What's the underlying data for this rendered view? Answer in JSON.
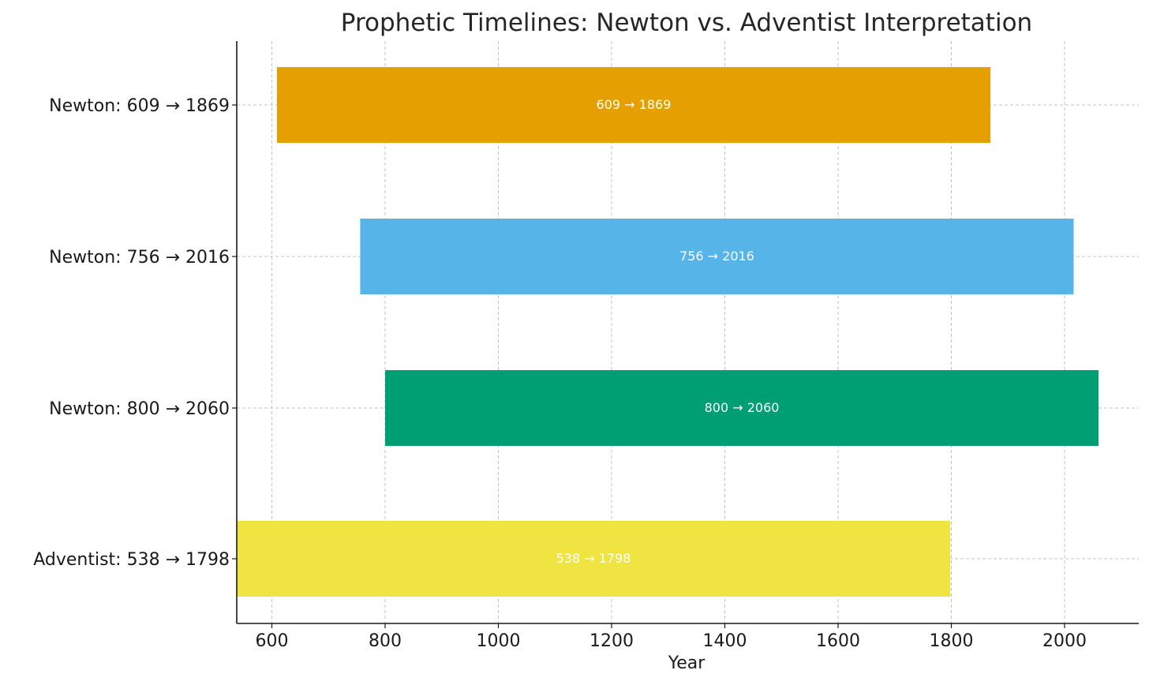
{
  "chart_data": {
    "type": "bar",
    "orientation": "horizontal",
    "title": "Prophetic Timelines: Newton vs. Adventist Interpretation",
    "xlabel": "Year",
    "ylabel": "",
    "xlim": [
      538,
      2131
    ],
    "xticks": [
      600,
      800,
      1000,
      1200,
      1400,
      1600,
      1800,
      2000
    ],
    "grid": true,
    "categories": [
      "Newton: 609 → 1869",
      "Newton: 756 → 2016",
      "Newton: 800 → 2060",
      "Adventist: 538 → 1798"
    ],
    "bars": [
      {
        "start": 609,
        "end": 1869,
        "label": "609 → 1869",
        "color": "#E69F00"
      },
      {
        "start": 756,
        "end": 2016,
        "label": "756 → 2016",
        "color": "#56B4E9"
      },
      {
        "start": 800,
        "end": 2060,
        "label": "800 → 2060",
        "color": "#009E73"
      },
      {
        "start": 538,
        "end": 1798,
        "label": "538 → 1798",
        "color": "#F0E442"
      }
    ]
  }
}
